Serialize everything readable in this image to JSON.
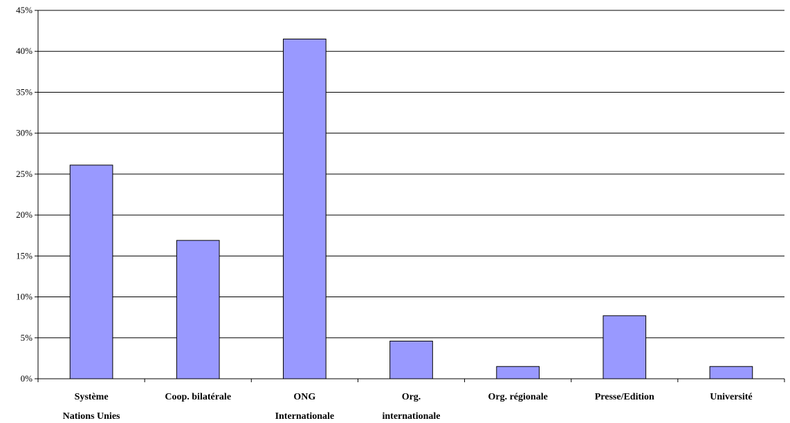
{
  "chart_data": {
    "type": "bar",
    "title": "",
    "xlabel": "",
    "ylabel": "",
    "categories": [
      [
        "Système",
        "Nations Unies"
      ],
      [
        "Coop. bilatérale"
      ],
      [
        "ONG",
        "Internationale"
      ],
      [
        "Org.",
        "internationale"
      ],
      [
        "Org. régionale"
      ],
      [
        "Presse/Edition"
      ],
      [
        "Université"
      ]
    ],
    "values": [
      26.1,
      16.9,
      41.5,
      4.6,
      1.5,
      7.7,
      1.5
    ],
    "ylim": [
      0,
      45
    ],
    "yticks": [
      "0%",
      "5%",
      "10%",
      "15%",
      "20%",
      "25%",
      "30%",
      "35%",
      "40%",
      "45%"
    ],
    "ytick_values": [
      0,
      5,
      10,
      15,
      20,
      25,
      30,
      35,
      40,
      45
    ],
    "grid": true,
    "bar_color": "#9999ff",
    "bar_edge_color": "#000000"
  }
}
